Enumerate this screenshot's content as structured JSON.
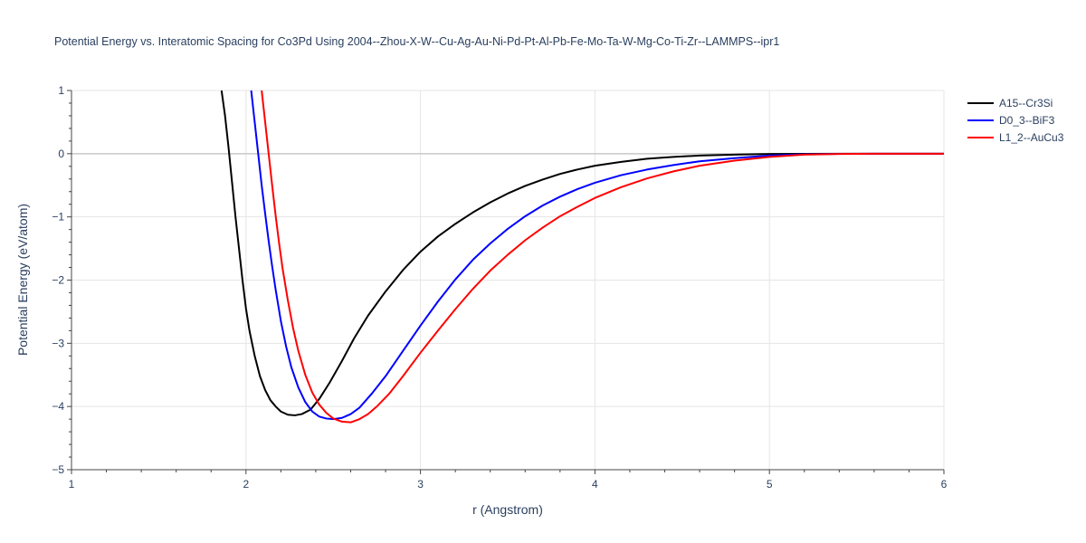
{
  "chart_data": {
    "type": "line",
    "title": "Potential Energy vs. Interatomic Spacing for Co3Pd Using 2004--Zhou-X-W--Cu-Ag-Au-Ni-Pd-Pt-Al-Pb-Fe-Mo-Ta-W-Mg-Co-Ti-Zr--LAMMPS--ipr1",
    "xlabel": "r (Angstrom)",
    "ylabel": "Potential Energy (eV/atom)",
    "xlim": [
      1,
      6
    ],
    "ylim": [
      -5,
      1
    ],
    "x_ticks": [
      1,
      2,
      3,
      4,
      5,
      6
    ],
    "y_ticks": [
      1,
      0,
      -1,
      -2,
      -3,
      -4,
      -5
    ],
    "y_tick_labels": [
      "1",
      "0",
      "−1",
      "−2",
      "−3",
      "−4",
      "−5"
    ],
    "grid": true,
    "zero_line": true,
    "legend_position": "top-right, outside plot",
    "series": [
      {
        "name": "A15--Cr3Si",
        "color": "#000000",
        "x": [
          1.86,
          1.88,
          1.9,
          1.92,
          1.94,
          1.96,
          1.98,
          2.0,
          2.02,
          2.05,
          2.08,
          2.11,
          2.14,
          2.17,
          2.2,
          2.24,
          2.28,
          2.32,
          2.37,
          2.42,
          2.48,
          2.55,
          2.62,
          2.7,
          2.8,
          2.9,
          3.0,
          3.1,
          3.2,
          3.3,
          3.4,
          3.5,
          3.6,
          3.7,
          3.8,
          3.9,
          4.0,
          4.15,
          4.3,
          4.45,
          4.6,
          4.8,
          5.0,
          5.2,
          5.4,
          5.6,
          5.8,
          6.0
        ],
        "y": [
          1.0,
          0.6,
          0.1,
          -0.45,
          -1.0,
          -1.5,
          -2.0,
          -2.45,
          -2.8,
          -3.2,
          -3.52,
          -3.74,
          -3.9,
          -4.0,
          -4.08,
          -4.13,
          -4.14,
          -4.12,
          -4.05,
          -3.88,
          -3.62,
          -3.28,
          -2.92,
          -2.56,
          -2.18,
          -1.84,
          -1.55,
          -1.31,
          -1.11,
          -0.93,
          -0.77,
          -0.63,
          -0.51,
          -0.41,
          -0.32,
          -0.25,
          -0.19,
          -0.13,
          -0.08,
          -0.05,
          -0.03,
          -0.015,
          -0.005,
          -0.002,
          -0.001,
          0.0,
          0.0,
          0.0
        ]
      },
      {
        "name": "D0_3--BiF3",
        "color": "#0000ff",
        "x": [
          2.03,
          2.05,
          2.07,
          2.09,
          2.11,
          2.13,
          2.15,
          2.17,
          2.2,
          2.23,
          2.26,
          2.3,
          2.34,
          2.38,
          2.42,
          2.46,
          2.5,
          2.55,
          2.6,
          2.65,
          2.72,
          2.8,
          2.9,
          3.0,
          3.1,
          3.2,
          3.3,
          3.4,
          3.5,
          3.6,
          3.7,
          3.8,
          3.9,
          4.0,
          4.15,
          4.3,
          4.45,
          4.6,
          4.8,
          5.0,
          5.2,
          5.4,
          5.6,
          5.8,
          6.0
        ],
        "y": [
          1.0,
          0.5,
          0.0,
          -0.5,
          -0.95,
          -1.38,
          -1.78,
          -2.15,
          -2.65,
          -3.05,
          -3.38,
          -3.7,
          -3.93,
          -4.08,
          -4.16,
          -4.19,
          -4.2,
          -4.18,
          -4.12,
          -4.02,
          -3.8,
          -3.52,
          -3.12,
          -2.72,
          -2.34,
          -1.99,
          -1.68,
          -1.42,
          -1.19,
          -0.99,
          -0.82,
          -0.68,
          -0.56,
          -0.46,
          -0.34,
          -0.25,
          -0.18,
          -0.12,
          -0.07,
          -0.03,
          -0.01,
          -0.003,
          -0.001,
          0.0,
          0.0
        ]
      },
      {
        "name": "L1_2--AuCu3",
        "color": "#ff0000",
        "x": [
          2.09,
          2.11,
          2.13,
          2.15,
          2.17,
          2.19,
          2.21,
          2.24,
          2.27,
          2.3,
          2.34,
          2.38,
          2.42,
          2.46,
          2.5,
          2.55,
          2.6,
          2.65,
          2.7,
          2.75,
          2.82,
          2.9,
          3.0,
          3.1,
          3.2,
          3.3,
          3.4,
          3.5,
          3.6,
          3.7,
          3.8,
          3.9,
          4.0,
          4.15,
          4.3,
          4.45,
          4.6,
          4.8,
          5.0,
          5.2,
          5.4,
          5.6,
          5.8,
          6.0
        ],
        "y": [
          1.0,
          0.5,
          0.0,
          -0.5,
          -0.98,
          -1.42,
          -1.82,
          -2.32,
          -2.76,
          -3.12,
          -3.5,
          -3.78,
          -3.97,
          -4.1,
          -4.19,
          -4.24,
          -4.25,
          -4.2,
          -4.12,
          -4.0,
          -3.8,
          -3.52,
          -3.15,
          -2.8,
          -2.46,
          -2.14,
          -1.85,
          -1.6,
          -1.37,
          -1.17,
          -0.99,
          -0.84,
          -0.7,
          -0.53,
          -0.39,
          -0.28,
          -0.19,
          -0.11,
          -0.05,
          -0.015,
          -0.004,
          -0.001,
          0.0,
          0.0
        ]
      }
    ]
  }
}
